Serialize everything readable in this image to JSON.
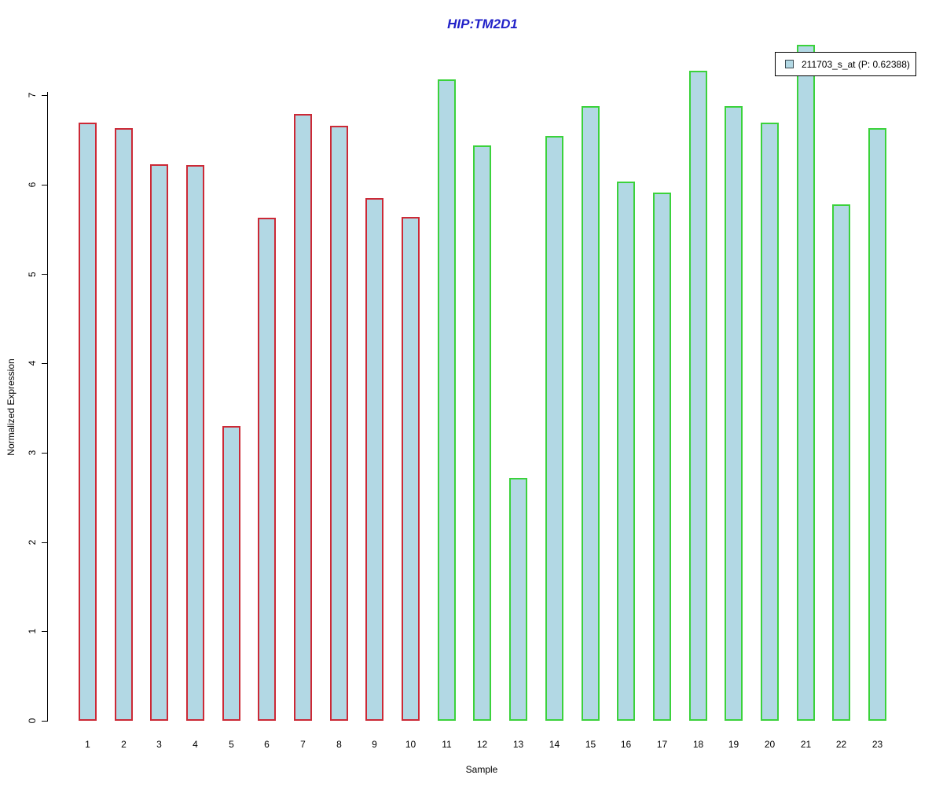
{
  "title": "HIP:TM2D1",
  "legend": {
    "label": "211703_s_at (P: 0.62388)"
  },
  "axis": {
    "xlabel": "Sample",
    "ylabel": "Normalized Expression"
  },
  "colors": {
    "title_blue": "#2121c8",
    "bar_fill": "#b2d8e4",
    "group1_border": "#cc2936",
    "group2_border": "#3bd23b",
    "axis_black": "#000000",
    "legend_swatch_border": "#37474f"
  },
  "chart_data": {
    "type": "bar",
    "title": "HIP:TM2D1",
    "xlabel": "Sample",
    "ylabel": "Normalized Expression",
    "ylim": [
      0,
      7.6
    ],
    "yticks": [
      0,
      1,
      2,
      3,
      4,
      5,
      6,
      7
    ],
    "grid": false,
    "legend_position": "top-right",
    "legend_entries": [
      "211703_s_at (P: 0.62388)"
    ],
    "categories": [
      "1",
      "2",
      "3",
      "4",
      "5",
      "6",
      "7",
      "8",
      "9",
      "10",
      "11",
      "12",
      "13",
      "14",
      "15",
      "16",
      "17",
      "18",
      "19",
      "20",
      "21",
      "22",
      "23"
    ],
    "series": [
      {
        "name": "211703_s_at (P: 0.62388)",
        "values": [
          6.69,
          6.63,
          6.23,
          6.22,
          3.3,
          5.63,
          6.79,
          6.66,
          5.85,
          5.64,
          7.18,
          6.44,
          2.72,
          6.54,
          6.88,
          6.03,
          5.91,
          7.27,
          6.88,
          6.69,
          7.56,
          5.78,
          6.63
        ],
        "fill": "#b2d8e4"
      }
    ],
    "border_color_groups": [
      {
        "categories": "1-10",
        "color": "#cc2936"
      },
      {
        "categories": "11-23",
        "color": "#3bd23b"
      }
    ],
    "group_split_index": 10
  }
}
